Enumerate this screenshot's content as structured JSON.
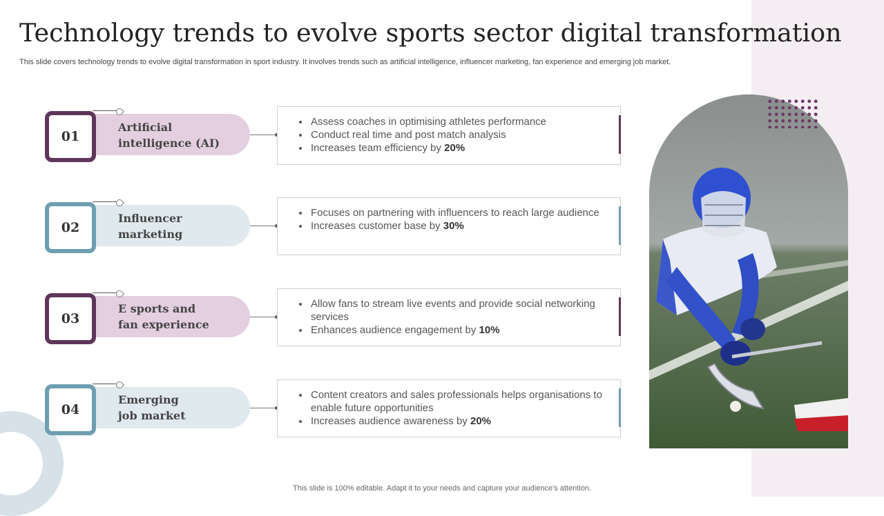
{
  "title": "Technology trends to evolve sports sector digital transformation",
  "subtitle": "This slide covers technology trends to evolve digital transformation in sport industry. It involves trends such as artificial intelligence, influencer marketing, fan experience and emerging job market.",
  "footer": "This slide is 100% editable. Adapt it to your needs and capture your audience's attention.",
  "colors": {
    "purple": "#5e3659",
    "purple_light": "#e4cfe0",
    "teal": "#6e9eb0",
    "teal_light": "#dfe9ee"
  },
  "trends": [
    {
      "number": "01",
      "label_line1": "Artificial",
      "label_line2": "intelligence (AI)",
      "bullets": [
        {
          "text": "Assess coaches in optimising athletes performance",
          "bold": ""
        },
        {
          "text": "Conduct real time and post match analysis",
          "bold": ""
        },
        {
          "text": "Increases team efficiency by ",
          "bold": "20%"
        }
      ]
    },
    {
      "number": "02",
      "label_line1": "Influencer",
      "label_line2": "marketing",
      "bullets": [
        {
          "text": "Focuses on partnering with influencers to reach large audience",
          "bold": ""
        },
        {
          "text": "Increases customer base by ",
          "bold": "30%"
        }
      ]
    },
    {
      "number": "03",
      "label_line1": "E sports and",
      "label_line2": "fan experience",
      "bullets": [
        {
          "text": "Allow fans to stream live events and provide social networking services",
          "bold": ""
        },
        {
          "text": "Enhances audience engagement by ",
          "bold": "10%"
        }
      ]
    },
    {
      "number": "04",
      "label_line1": "Emerging",
      "label_line2": "job market",
      "bullets": [
        {
          "text": "Content creators and sales professionals helps organisations to enable future opportunities",
          "bold": ""
        },
        {
          "text": "Increases audience awareness by ",
          "bold": "20%"
        }
      ]
    }
  ]
}
